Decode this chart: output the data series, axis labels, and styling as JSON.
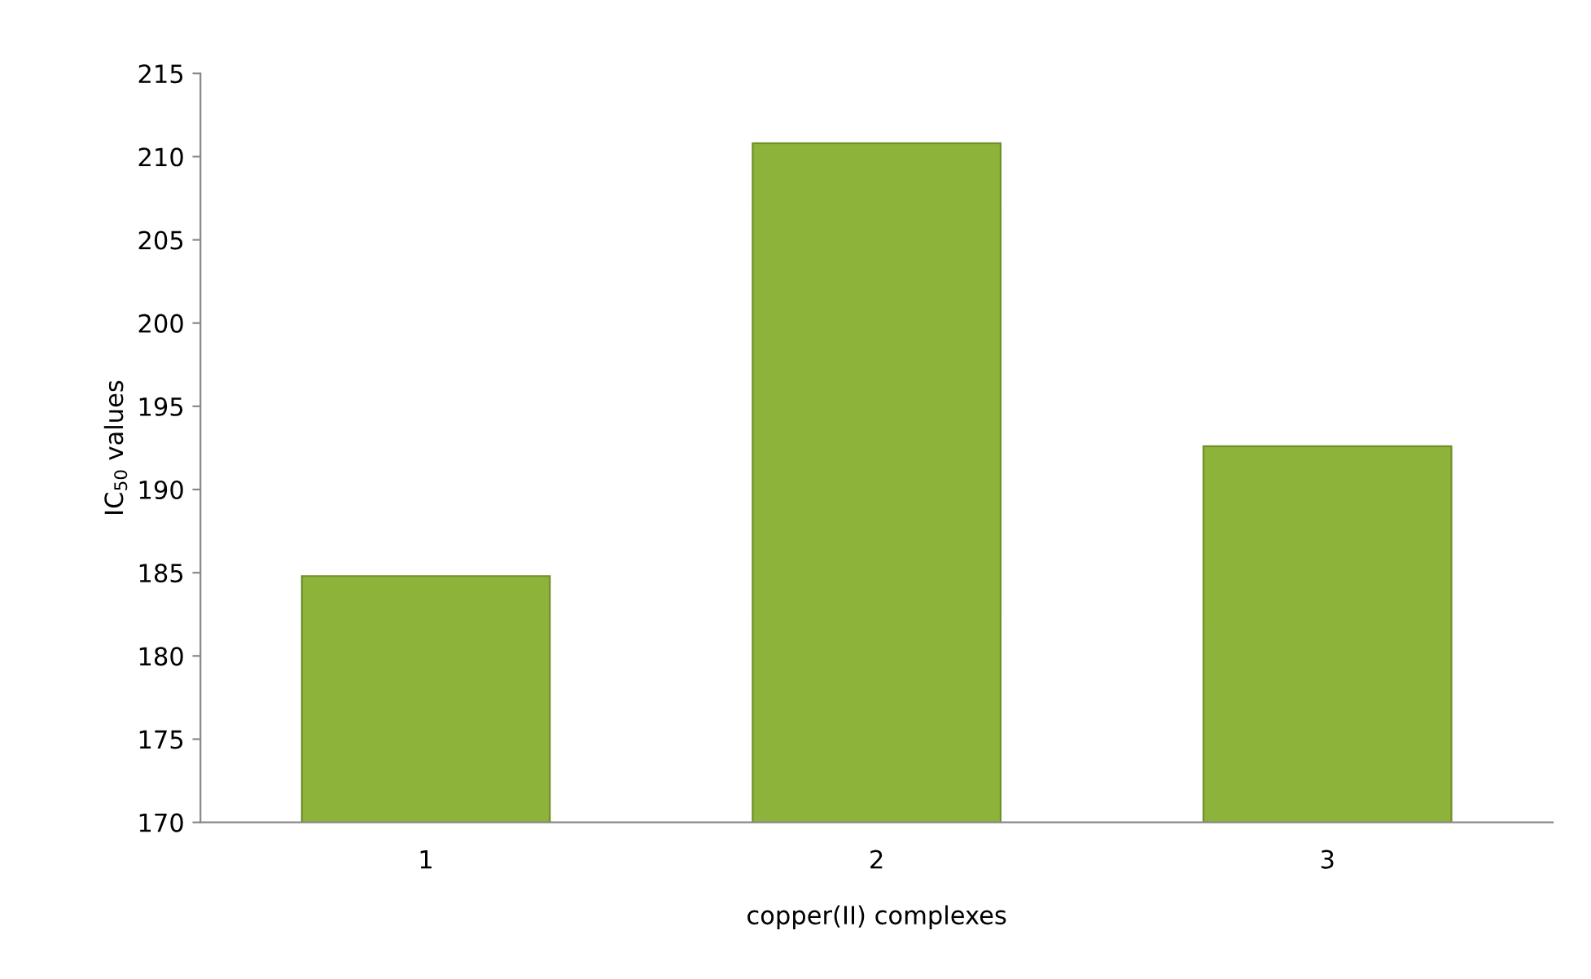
{
  "chart_data": {
    "type": "bar",
    "xlabel": "copper(II) complexes",
    "ylabel": "IC$_{50}$ values",
    "categories": [
      "1",
      "2",
      "3"
    ],
    "values": [
      184.8,
      210.8,
      192.6
    ],
    "color": "#8db33a",
    "ylim": [
      170,
      215
    ],
    "yticks": [
      170,
      175,
      180,
      185,
      190,
      195,
      200,
      205,
      210,
      215
    ],
    "grid": false,
    "legend": false
  }
}
